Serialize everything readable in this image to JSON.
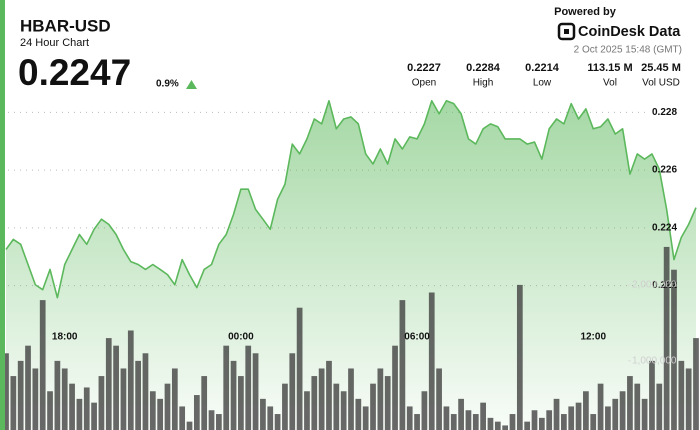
{
  "header": {
    "title": "HBAR-USD",
    "subtitle": "24 Hour Chart",
    "price": "0.2247",
    "change": "0.9%",
    "powered_by": "Powered by",
    "brand": "CoinDesk Data",
    "timestamp": "2 Oct 2025 15:48 (GMT)"
  },
  "stats": [
    {
      "value": "0.2227",
      "label": "Open"
    },
    {
      "value": "0.2284",
      "label": "High"
    },
    {
      "value": "0.2214",
      "label": "Low"
    },
    {
      "value": "113.15 M",
      "label": "Vol"
    },
    {
      "value": "25.45 M",
      "label": "Vol USD"
    }
  ],
  "chart_data": [
    {
      "type": "line",
      "color": "#5cb85c",
      "grid": true,
      "categories": [
        null,
        null,
        null,
        null,
        null,
        null,
        null,
        null,
        "18:00",
        null,
        null,
        null,
        null,
        null,
        null,
        null,
        null,
        null,
        null,
        null,
        null,
        null,
        null,
        null,
        null,
        null,
        null,
        null,
        null,
        null,
        null,
        null,
        "00:00",
        null,
        null,
        null,
        null,
        null,
        null,
        null,
        null,
        null,
        null,
        null,
        null,
        null,
        null,
        null,
        null,
        null,
        null,
        null,
        null,
        null,
        null,
        null,
        "06:00",
        null,
        null,
        null,
        null,
        null,
        null,
        null,
        null,
        null,
        null,
        null,
        null,
        null,
        null,
        null,
        null,
        null,
        null,
        null,
        null,
        null,
        null,
        null,
        "12:00",
        null,
        null,
        null,
        null,
        null,
        null,
        null,
        null,
        null,
        null,
        null,
        null,
        null,
        null
      ],
      "values": [
        0.22325,
        0.2236,
        0.22343,
        0.22273,
        0.22203,
        0.22186,
        0.22256,
        0.22158,
        0.22273,
        0.22325,
        0.22377,
        0.22343,
        0.22395,
        0.2243,
        0.22412,
        0.22377,
        0.22325,
        0.22283,
        0.22273,
        0.22256,
        0.22273,
        0.22256,
        0.22238,
        0.22203,
        0.2229,
        0.22238,
        0.22193,
        0.22256,
        0.22273,
        0.22343,
        0.22377,
        0.22447,
        0.22534,
        0.22534,
        0.22464,
        0.2243,
        0.22395,
        0.22499,
        0.22551,
        0.2269,
        0.22656,
        0.22708,
        0.22777,
        0.2276,
        0.2284,
        0.22743,
        0.22777,
        0.22784,
        0.2276,
        0.22656,
        0.22621,
        0.22673,
        0.22621,
        0.22708,
        0.22673,
        0.22715,
        0.22708,
        0.2276,
        0.2284,
        0.22795,
        0.2284,
        0.2283,
        0.22795,
        0.22708,
        0.2269,
        0.22743,
        0.2276,
        0.2275,
        0.22708,
        0.22708,
        0.22708,
        0.2269,
        0.22697,
        0.22638,
        0.22743,
        0.22777,
        0.2276,
        0.2283,
        0.22777,
        0.22812,
        0.22743,
        0.2275,
        0.22777,
        0.22725,
        0.22743,
        0.22586,
        0.22656,
        0.22638,
        0.22656,
        0.22603,
        0.22464,
        0.2229,
        0.22367,
        0.22412,
        0.2247
      ],
      "ylim": [
        0.217,
        0.2286
      ],
      "yticks": [
        0.222,
        0.224,
        0.226,
        0.228
      ]
    },
    {
      "type": "bar",
      "color": "#3d3d3d",
      "values": [
        1100000,
        800000,
        1000000,
        1200000,
        900000,
        1800000,
        600000,
        1000000,
        900000,
        700000,
        500000,
        650000,
        450000,
        800000,
        1300000,
        1200000,
        900000,
        1400000,
        1000000,
        1100000,
        600000,
        500000,
        700000,
        900000,
        400000,
        200000,
        550000,
        800000,
        350000,
        300000,
        1200000,
        1000000,
        800000,
        1200000,
        1100000,
        500000,
        400000,
        300000,
        700000,
        1100000,
        1700000,
        600000,
        800000,
        900000,
        1000000,
        700000,
        600000,
        900000,
        500000,
        400000,
        700000,
        900000,
        800000,
        1200000,
        1800000,
        400000,
        300000,
        600000,
        1900000,
        900000,
        400000,
        300000,
        500000,
        350000,
        300000,
        450000,
        250000,
        200000,
        150000,
        300000,
        2000000,
        200000,
        350000,
        250000,
        350000,
        500000,
        300000,
        400000,
        450000,
        600000,
        300000,
        700000,
        400000,
        500000,
        600000,
        800000,
        700000,
        500000,
        1000000,
        700000,
        2500000,
        2200000,
        1000000,
        900000,
        1300000
      ],
      "ylim": [
        90000,
        4500000
      ],
      "yticks": [
        {
          "value": 1000000,
          "label": "1,000,000"
        },
        {
          "value": 2000000,
          "label": "2,000,000"
        }
      ]
    }
  ]
}
